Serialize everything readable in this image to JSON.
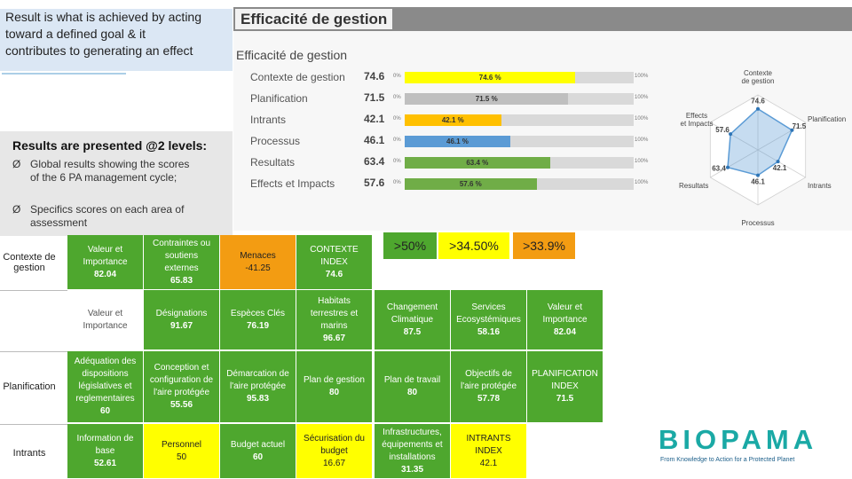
{
  "note": {
    "line1": "Result is what is achieved by acting",
    "line2": "toward  a defined goal & it",
    "line3": "contributes to generating an effect"
  },
  "results": {
    "title": "Results are presented @2 levels:",
    "bullet_glyph": "Ø",
    "bullet1_line1": "Global results showing the scores",
    "bullet1_line2": "of the 6 PA management cycle;",
    "bullet2_line1": "Specifics scores on each area of",
    "bullet2_line2": "assessment"
  },
  "efficacite": {
    "header": "Efficacité de gestion",
    "subtitle": "Efficacité de gestion",
    "p0": "0%",
    "p100": "100%",
    "rows": [
      {
        "label": "Contexte de gestion",
        "value": "74.6",
        "bar_label": "74.6 %",
        "fraction": 0.746,
        "color": "#ffff00"
      },
      {
        "label": "Planification",
        "value": "71.5",
        "bar_label": "71.5 %",
        "fraction": 0.715,
        "color": "#bfbfbf"
      },
      {
        "label": "Intrants",
        "value": "42.1",
        "bar_label": "42.1 %",
        "fraction": 0.421,
        "color": "#ffc000"
      },
      {
        "label": "Processus",
        "value": "46.1",
        "bar_label": "46.1 %",
        "fraction": 0.461,
        "color": "#5b9bd5"
      },
      {
        "label": "Resultats",
        "value": "63.4",
        "bar_label": "63.4 %",
        "fraction": 0.634,
        "color": "#70ad47"
      },
      {
        "label": "Effects et Impacts",
        "value": "57.6",
        "bar_label": "57.6 %",
        "fraction": 0.576,
        "color": "#70ad47"
      }
    ]
  },
  "radar": {
    "axis_contexte_1": "Contexte",
    "axis_contexte_2": "de gestion",
    "axis_planification": "Planification",
    "axis_intrants": "Intrants",
    "axis_processus": "Processus",
    "axis_resultats": "Resultats",
    "axis_effects_1": "Effects",
    "axis_effects_2": "et Impacts",
    "values": [
      74.6,
      71.5,
      42.1,
      46.1,
      63.4,
      57.6
    ],
    "value_labels": [
      "74.6",
      "71.5",
      "42.1",
      "46.1",
      "63.4",
      "57.6"
    ]
  },
  "badges": [
    {
      "text": ">50%",
      "color": "#4ea72e"
    },
    {
      "text": ">34.50%",
      "color": "#ffff00"
    },
    {
      "text": ">33.9%",
      "color": "#f39c12"
    }
  ],
  "grid": {
    "row_heads": [
      "Contexte de gestion",
      "Planification",
      "Intrants"
    ],
    "cells": {
      "r0c0": {
        "l1": "Valeur et",
        "l2": "Importance",
        "v": "82.04"
      },
      "r0c1": {
        "l1": "Contraintes ou",
        "l2": "soutiens",
        "l3": "externes",
        "v": "65.83"
      },
      "r0c2": {
        "l1": "Menaces",
        "v": "-41.25"
      },
      "r0c3": {
        "l1": "CONTEXTE",
        "l2": "INDEX",
        "v": "74.6"
      },
      "r1c0": {
        "l1": "Valeur et",
        "l2": "Importance"
      },
      "r1c1": {
        "l1": "Désignations",
        "v": "91.67"
      },
      "r1c2": {
        "l1": "Espèces Clés",
        "v": "76.19"
      },
      "r1c3": {
        "l1": "Habitats",
        "l2": "terrestres et",
        "l3": "marins",
        "v": "96.67"
      },
      "r1c4": {
        "l1": "Changement",
        "l2": "Climatique",
        "v": "87.5"
      },
      "r1c5": {
        "l1": "Services",
        "l2": "Ecosystémiques",
        "v": "58.16"
      },
      "r1c6": {
        "l1": "Valeur et",
        "l2": "Importance",
        "v": "82.04"
      },
      "r2c0": {
        "l1": "Adéquation des",
        "l2": "dispositions",
        "l3": "législatives et",
        "l4": "reglementaires",
        "v": "60"
      },
      "r2c1": {
        "l1": "Conception et",
        "l2": "configuration de",
        "l3": "l'aire protégée",
        "v": "55.56"
      },
      "r2c2": {
        "l1": "Démarcation de",
        "l2": "l'aire protégée",
        "v": "95.83"
      },
      "r2c3": {
        "l1": "Plan de gestion",
        "v": "80"
      },
      "r2c4": {
        "l1": "Plan de travail",
        "v": "80"
      },
      "r2c5": {
        "l1": "Objectifs de",
        "l2": "l'aire protégée",
        "v": "57.78"
      },
      "r2c6": {
        "l1": "PLANIFICATION",
        "l2": "INDEX",
        "v": "71.5"
      },
      "r3c0": {
        "l1": "Information de",
        "l2": "base",
        "v": "52.61"
      },
      "r3c1": {
        "l1": "Personnel",
        "v": "50"
      },
      "r3c2": {
        "l1": "Budget actuel",
        "v": "60"
      },
      "r3c3": {
        "l1": "Sécurisation du",
        "l2": "budget",
        "v": "16.67"
      },
      "r3c4": {
        "l1": "Infrastructures,",
        "l2": "équipements et",
        "l3": "installations",
        "v": "31.35"
      },
      "r3c5": {
        "l1": "INTRANTS",
        "l2": "INDEX",
        "v": "42.1"
      }
    }
  },
  "logo": {
    "word": "BIOPAMA",
    "tagline": "From Knowledge to Action for a Protected Planet"
  }
}
